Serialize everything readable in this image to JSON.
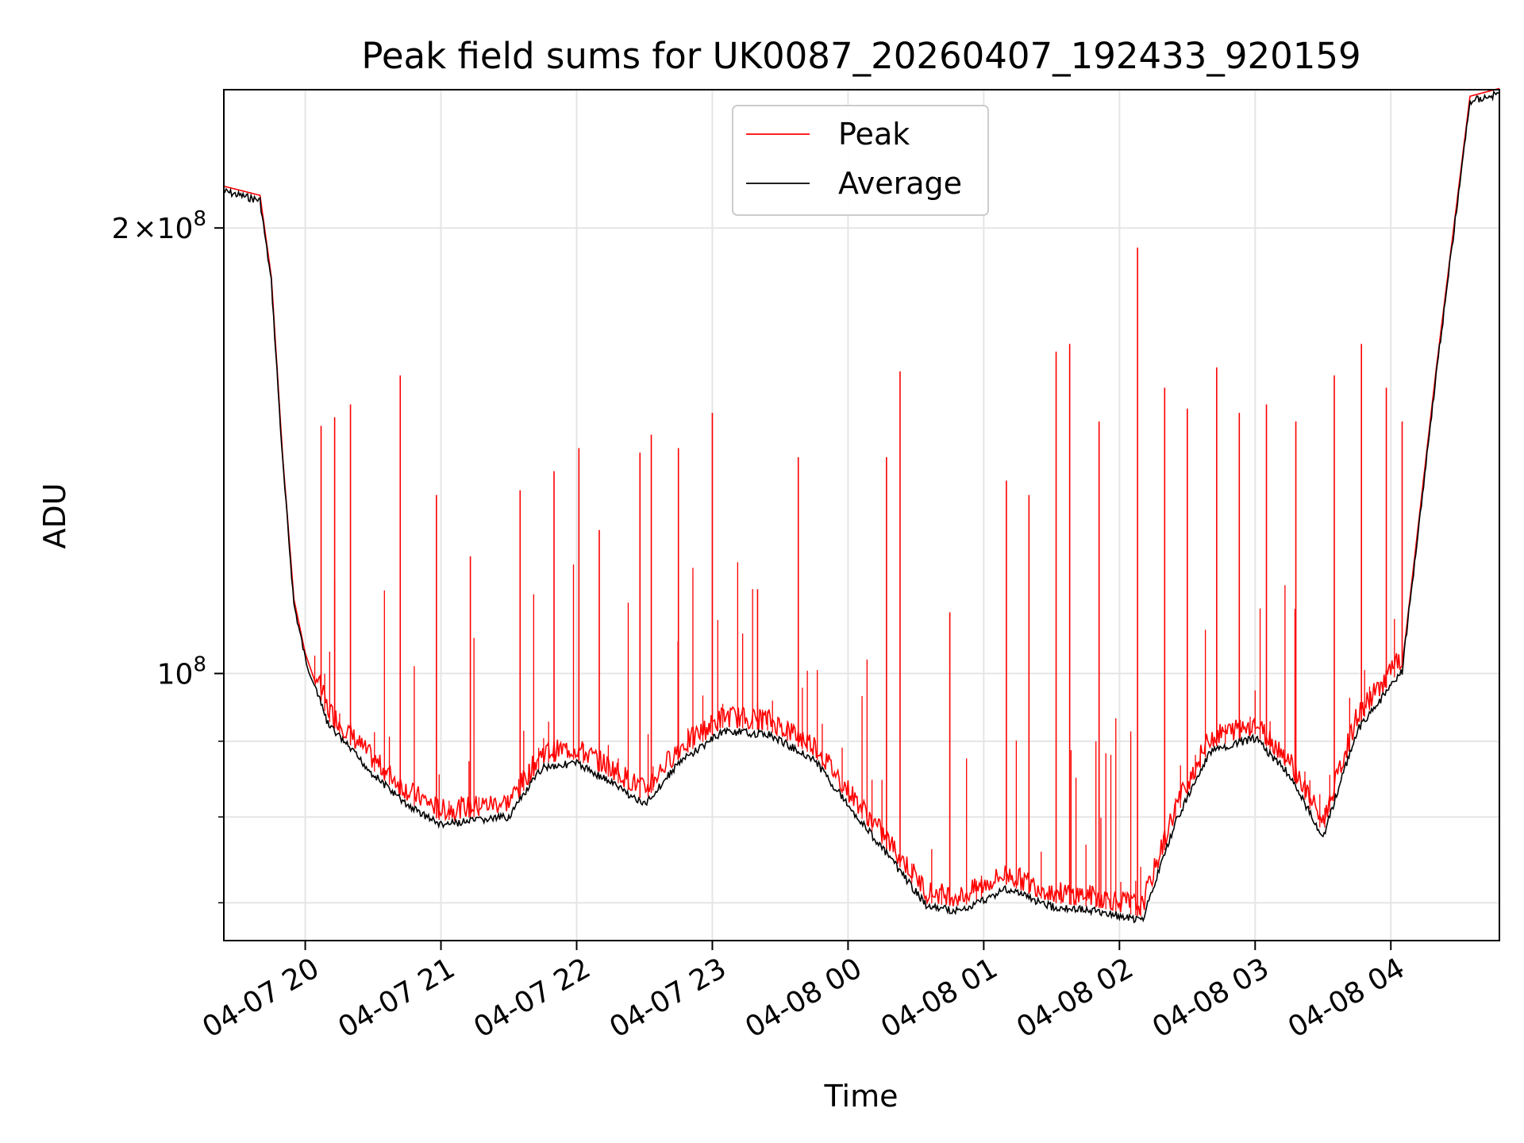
{
  "chart_data": {
    "type": "line",
    "title": "Peak field sums for UK0087_20260407_192433_920159",
    "xlabel": "Time",
    "ylabel": "ADU",
    "yscale": "log",
    "xlim": [
      "2026-04-07 19:24",
      "2026-04-08 04:48"
    ],
    "ylim": [
      66000000,
      248000000
    ],
    "grid": true,
    "legend": "upper-center",
    "x_ticks": [
      "04-07 20",
      "04-07 21",
      "04-07 22",
      "04-07 23",
      "04-08 00",
      "04-08 01",
      "04-08 02",
      "04-08 03",
      "04-08 04"
    ],
    "y_ticks": [
      {
        "label_base": "2",
        "label_mid": "×",
        "label_exp_base": "10",
        "label_exp": "8",
        "value": 200000000
      },
      {
        "label_base": "",
        "label_mid": "",
        "label_exp_base": "10",
        "label_exp": "8",
        "value": 100000000
      }
    ],
    "y_minor_gridlines": [
      70000000,
      80000000,
      90000000
    ],
    "series": [
      {
        "name": "Peak",
        "color": "#ff0000",
        "baseline_points": [
          [
            "2026-04-07 19:24",
            213000000
          ],
          [
            "2026-04-07 19:40",
            210000000
          ],
          [
            "2026-04-07 19:45",
            185000000
          ],
          [
            "2026-04-07 19:50",
            140000000
          ],
          [
            "2026-04-07 19:55",
            112000000
          ],
          [
            "2026-04-07 20:00",
            103000000
          ],
          [
            "2026-04-07 20:10",
            93000000
          ],
          [
            "2026-04-07 20:30",
            86000000
          ],
          [
            "2026-04-07 20:45",
            82000000
          ],
          [
            "2026-04-07 21:00",
            79500000
          ],
          [
            "2026-04-07 21:15",
            80000000
          ],
          [
            "2026-04-07 21:30",
            80500000
          ],
          [
            "2026-04-07 21:45",
            87000000
          ],
          [
            "2026-04-07 22:00",
            87500000
          ],
          [
            "2026-04-07 22:15",
            85000000
          ],
          [
            "2026-04-07 22:30",
            82000000
          ],
          [
            "2026-04-07 22:45",
            87500000
          ],
          [
            "2026-04-07 23:05",
            92000000
          ],
          [
            "2026-04-07 23:25",
            91500000
          ],
          [
            "2026-04-07 23:45",
            88000000
          ],
          [
            "2026-04-08 00:00",
            82000000
          ],
          [
            "2026-04-08 00:20",
            75000000
          ],
          [
            "2026-04-08 00:35",
            70000000
          ],
          [
            "2026-04-08 00:50",
            69500000
          ],
          [
            "2026-04-08 01:10",
            72000000
          ],
          [
            "2026-04-08 01:30",
            70000000
          ],
          [
            "2026-04-08 01:50",
            69500000
          ],
          [
            "2026-04-08 02:10",
            68500000
          ],
          [
            "2026-04-08 02:25",
            80000000
          ],
          [
            "2026-04-08 02:40",
            89000000
          ],
          [
            "2026-04-08 03:00",
            91000000
          ],
          [
            "2026-04-08 03:15",
            86000000
          ],
          [
            "2026-04-08 03:30",
            78000000
          ],
          [
            "2026-04-08 03:45",
            92000000
          ],
          [
            "2026-04-08 04:05",
            101000000
          ],
          [
            "2026-04-08 04:20",
            160000000
          ],
          [
            "2026-04-08 04:35",
            245000000
          ],
          [
            "2026-04-08 04:48",
            248000000
          ]
        ],
        "spikes": [
          [
            "2026-04-07 20:07",
            147000000
          ],
          [
            "2026-04-07 20:13",
            149000000
          ],
          [
            "2026-04-07 20:20",
            152000000
          ],
          [
            "2026-04-07 20:42",
            159000000
          ],
          [
            "2026-04-07 20:58",
            132000000
          ],
          [
            "2026-04-07 21:13",
            120000000
          ],
          [
            "2026-04-07 21:35",
            133000000
          ],
          [
            "2026-04-07 21:50",
            137000000
          ],
          [
            "2026-04-07 22:01",
            142000000
          ],
          [
            "2026-04-07 22:10",
            125000000
          ],
          [
            "2026-04-07 22:28",
            141000000
          ],
          [
            "2026-04-07 22:33",
            145000000
          ],
          [
            "2026-04-07 22:45",
            142000000
          ],
          [
            "2026-04-07 23:00",
            150000000
          ],
          [
            "2026-04-07 23:20",
            114000000
          ],
          [
            "2026-04-07 23:38",
            140000000
          ],
          [
            "2026-04-08 00:17",
            140000000
          ],
          [
            "2026-04-08 00:23",
            160000000
          ],
          [
            "2026-04-08 00:45",
            110000000
          ],
          [
            "2026-04-08 01:10",
            135000000
          ],
          [
            "2026-04-08 01:20",
            132000000
          ],
          [
            "2026-04-08 01:32",
            165000000
          ],
          [
            "2026-04-08 01:38",
            167000000
          ],
          [
            "2026-04-08 01:51",
            148000000
          ],
          [
            "2026-04-08 02:08",
            194000000
          ],
          [
            "2026-04-08 02:20",
            156000000
          ],
          [
            "2026-04-08 02:30",
            151000000
          ],
          [
            "2026-04-08 02:43",
            161000000
          ],
          [
            "2026-04-08 02:53",
            150000000
          ],
          [
            "2026-04-08 03:05",
            152000000
          ],
          [
            "2026-04-08 03:18",
            148000000
          ],
          [
            "2026-04-08 03:35",
            159000000
          ],
          [
            "2026-04-08 03:47",
            167000000
          ],
          [
            "2026-04-08 03:58",
            156000000
          ],
          [
            "2026-04-08 04:05",
            148000000
          ]
        ]
      },
      {
        "name": "Average",
        "color": "#000000"
      }
    ]
  }
}
